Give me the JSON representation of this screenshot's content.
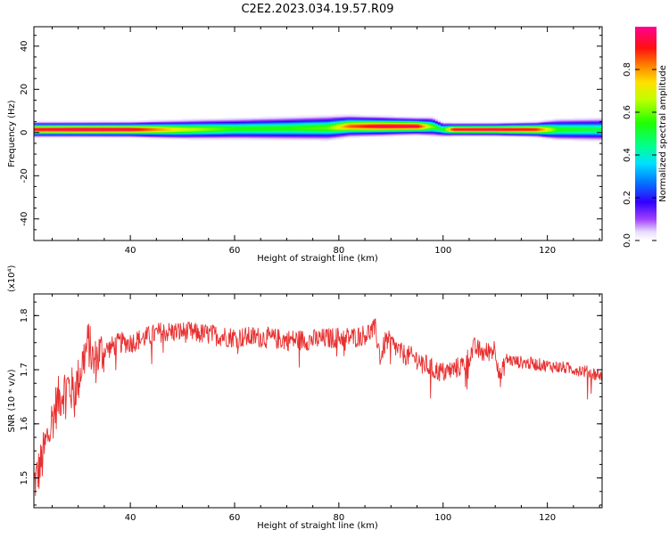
{
  "title": "C2E2.2023.034.19.57.R09",
  "colors": {
    "snr_line": "#e83030",
    "axis": "#000000",
    "background": "#ffffff"
  },
  "chart_data": [
    {
      "type": "heatmap",
      "xlabel": "Height of straight line (km)",
      "ylabel": "Frequency (Hz)",
      "xlim": [
        21.5,
        130.5
      ],
      "ylim": [
        -50,
        49
      ],
      "xticks": [
        40,
        60,
        80,
        100,
        120
      ],
      "yticks": [
        -40,
        -20,
        0,
        20,
        40
      ],
      "colorbar": {
        "label": "Normalized spectral amplitude",
        "range": [
          0,
          1
        ],
        "ticks": [
          0.0,
          0.2,
          0.4,
          0.6,
          0.8
        ],
        "tick_labels": [
          "0.0",
          "0.2",
          "0.4",
          "0.6",
          "0.8"
        ]
      },
      "ridge": {
        "x": [
          22,
          30,
          40,
          50,
          60,
          70,
          78,
          82,
          88,
          95,
          98,
          100,
          102,
          110,
          118,
          122,
          130
        ],
        "center_hz": [
          1.5,
          1.5,
          1.5,
          1.5,
          1.8,
          2.0,
          2.2,
          3.0,
          3.0,
          3.0,
          2.8,
          1.5,
          1.5,
          1.5,
          1.5,
          1.5,
          1.5
        ],
        "halfwidth_hz": [
          3.5,
          3.5,
          3.6,
          4.5,
          5.0,
          5.5,
          5.8,
          5.0,
          4.5,
          4.0,
          4.5,
          3.5,
          3.0,
          3.0,
          3.5,
          5.0,
          5.5
        ],
        "peak_amplitude": [
          0.95,
          0.98,
          0.96,
          0.7,
          0.55,
          0.55,
          0.6,
          0.85,
          0.95,
          0.95,
          0.6,
          0.5,
          0.95,
          0.98,
          0.9,
          0.55,
          0.5
        ]
      }
    },
    {
      "type": "line",
      "xlabel": "Height of straight line (km)",
      "ylabel": "SNR (10 * v/v)",
      "y_multiplier": "(x10⁴)",
      "xlim": [
        21.5,
        130.5
      ],
      "ylim": [
        1.445,
        1.84
      ],
      "xticks": [
        40,
        60,
        80,
        100,
        120
      ],
      "yticks": [
        1.5,
        1.6,
        1.7,
        1.8
      ],
      "series": [
        {
          "x": [
            21.5,
            22,
            23,
            24,
            25,
            26,
            27,
            28,
            29,
            30,
            31,
            32,
            33,
            34,
            36,
            38,
            40,
            43,
            46,
            50,
            55,
            60,
            65,
            70,
            75,
            80,
            83,
            85,
            86,
            87,
            88,
            89,
            90,
            92,
            95,
            98,
            100,
            102,
            104,
            106,
            108,
            110,
            111,
            112,
            114,
            118,
            122,
            126,
            130
          ],
          "y": [
            1.49,
            1.5,
            1.53,
            1.57,
            1.61,
            1.64,
            1.66,
            1.67,
            1.66,
            1.68,
            1.72,
            1.75,
            1.71,
            1.73,
            1.74,
            1.75,
            1.75,
            1.76,
            1.77,
            1.77,
            1.765,
            1.76,
            1.76,
            1.755,
            1.755,
            1.76,
            1.76,
            1.765,
            1.77,
            1.775,
            1.72,
            1.755,
            1.75,
            1.73,
            1.72,
            1.7,
            1.695,
            1.7,
            1.71,
            1.74,
            1.73,
            1.74,
            1.68,
            1.72,
            1.715,
            1.71,
            1.705,
            1.7,
            1.69
          ]
        }
      ]
    }
  ]
}
